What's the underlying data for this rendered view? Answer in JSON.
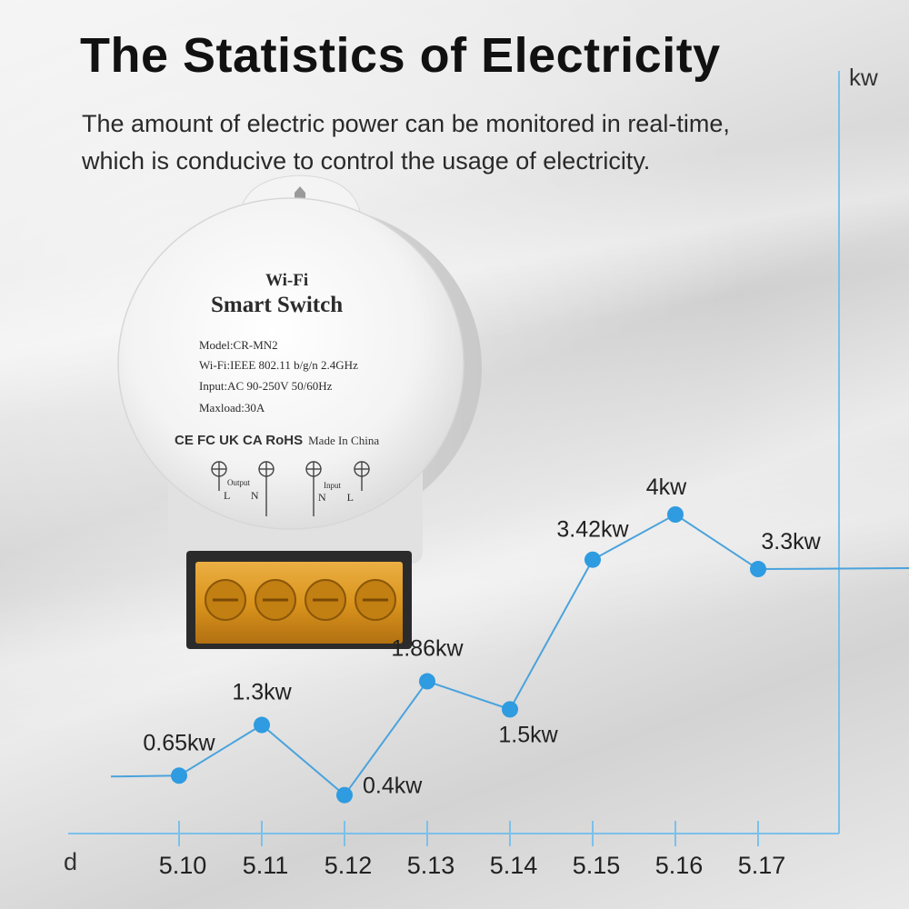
{
  "header": {
    "title": "The Statistics of Electricity",
    "subtitle_line1": "The amount of electric power can be monitored in real-time,",
    "subtitle_line2": "which is conducive to control the usage of electricity."
  },
  "device": {
    "line1": "Wi-Fi",
    "line2": "Smart Switch",
    "model": "Model:CR-MN2",
    "wifi": "Wi-Fi:IEEE 802.11 b/g/n 2.4GHz",
    "input": "Input:AC 90-250V 50/60Hz",
    "maxload": "Maxload:30A",
    "certs": "CE FC UK CA RoHS",
    "made": "Made In China",
    "output_label": "Output",
    "input_label": "Input",
    "output_terms": "L N",
    "input_terms": "N L"
  },
  "colors": {
    "line": "#4aa3dc",
    "point": "#2f9be0",
    "axis": "#7cc0ea"
  },
  "chart_data": {
    "type": "line",
    "x_unit": "d",
    "y_unit": "kw",
    "categories": [
      "5.10",
      "5.11",
      "5.12",
      "5.13",
      "5.14",
      "5.15",
      "5.16",
      "5.17"
    ],
    "values": [
      0.65,
      1.3,
      0.4,
      1.86,
      1.5,
      3.42,
      4,
      3.3
    ],
    "point_labels": [
      "0.65kw",
      "1.3kw",
      "0.4kw",
      "1.86kw",
      "1.5kw",
      "3.42kw",
      "4kw",
      "3.3kw"
    ],
    "grid": false
  }
}
